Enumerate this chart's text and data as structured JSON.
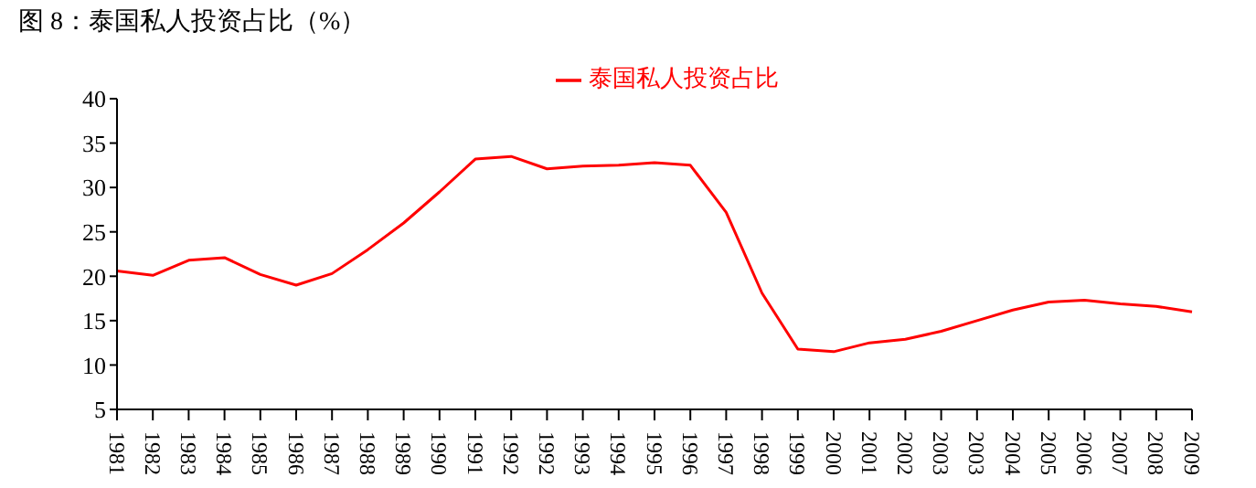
{
  "chart_data": {
    "type": "line",
    "title": "图 8：泰国私人投资占比（%）",
    "categories": [
      "1981",
      "1982",
      "1983",
      "1984",
      "1985",
      "1986",
      "1987",
      "1988",
      "1989",
      "1990",
      "1991",
      "1992",
      "1992",
      "1993",
      "1994",
      "1995",
      "1996",
      "1997",
      "1998",
      "1999",
      "2000",
      "2001",
      "2002",
      "2003",
      "2003",
      "2004",
      "2005",
      "2006",
      "2007",
      "2008",
      "2009"
    ],
    "series": [
      {
        "name": "泰国私人投资占比",
        "color": "#ff0000",
        "values": [
          20.6,
          20.1,
          21.8,
          22.1,
          20.2,
          19.0,
          20.3,
          23.0,
          26.0,
          29.5,
          33.2,
          33.5,
          32.1,
          32.4,
          32.5,
          32.8,
          32.5,
          27.2,
          18.1,
          11.8,
          11.5,
          12.5,
          12.9,
          13.8,
          15.0,
          16.2,
          17.1,
          17.3,
          16.9,
          16.6,
          16.0
        ]
      }
    ],
    "ylim": [
      5,
      40
    ],
    "yticks": [
      5,
      10,
      15,
      20,
      25,
      30,
      35,
      40
    ],
    "legend": "top",
    "marker": "none",
    "line_style": "solid"
  }
}
